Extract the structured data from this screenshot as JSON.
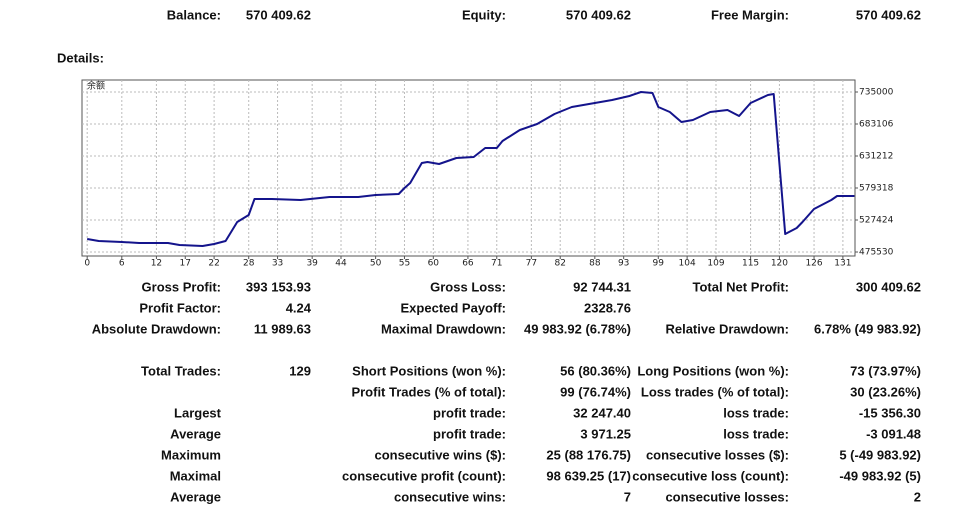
{
  "summary": [
    {
      "label": "Balance:",
      "value": "570 409.62"
    },
    {
      "label": "Equity:",
      "value": "570 409.62"
    },
    {
      "label": "Free Margin:",
      "value": "570 409.62"
    }
  ],
  "details_label": "Details:",
  "chart_data": {
    "type": "line",
    "title": "余额",
    "color": "#14148c",
    "grid": true,
    "x": [
      0,
      1,
      2,
      6,
      9,
      14,
      16,
      20,
      22,
      24,
      26,
      28,
      29,
      32,
      37,
      42,
      47,
      50,
      54,
      55,
      56,
      58,
      59,
      61,
      64,
      67,
      69,
      71,
      72,
      75,
      78,
      81,
      84,
      88,
      91,
      94,
      96,
      98,
      99,
      101,
      103,
      105,
      108,
      111,
      113,
      115,
      118,
      119,
      121,
      123,
      124,
      126,
      129,
      130,
      133
    ],
    "values": [
      496610,
      494990,
      493370,
      491740,
      490120,
      490120,
      486880,
      485260,
      488500,
      493370,
      524180,
      535530,
      561480,
      561480,
      559860,
      564720,
      564720,
      567970,
      569590,
      579320,
      587420,
      619860,
      621480,
      618240,
      627970,
      629590,
      644190,
      644190,
      655540,
      673380,
      683110,
      699320,
      710680,
      717160,
      722030,
      728510,
      735000,
      733380,
      710680,
      702570,
      686350,
      689590,
      702570,
      705810,
      696080,
      717160,
      730140,
      731760,
      504720,
      514450,
      524180,
      545260,
      559860,
      566330,
      566330
    ],
    "xlim": [
      -0.9,
      133.1
    ],
    "ylim": [
      469040,
      754460
    ],
    "xticks": [
      0,
      6,
      12,
      17,
      22,
      28,
      33,
      39,
      44,
      50,
      55,
      60,
      66,
      71,
      77,
      82,
      88,
      93,
      99,
      104,
      109,
      115,
      120,
      126,
      131
    ],
    "yticks": [
      475530,
      527424,
      579318,
      631212,
      683106,
      735000
    ]
  },
  "rows": [
    [
      "Gross Profit:",
      "393 153.93",
      "Gross Loss:",
      "92 744.31",
      "Total Net Profit:",
      "300 409.62"
    ],
    [
      "Profit Factor:",
      "4.24",
      "Expected Payoff:",
      "2328.76",
      null,
      null
    ],
    [
      "Absolute Drawdown:",
      "11 989.63",
      "Maximal Drawdown:",
      "49 983.92 (6.78%)",
      "Relative Drawdown:",
      "6.78% (49 983.92)"
    ],
    [
      "Total Trades:",
      "129",
      "Short Positions (won %):",
      "56 (80.36%)",
      "Long Positions (won %):",
      "73 (73.97%)"
    ],
    [
      null,
      null,
      "Profit Trades (% of total):",
      "99 (76.74%)",
      "Loss trades (% of total):",
      "30 (23.26%)"
    ],
    [
      "Largest",
      null,
      "profit trade:",
      "32 247.40",
      "loss trade:",
      "-15 356.30"
    ],
    [
      "Average",
      null,
      "profit trade:",
      "3 971.25",
      "loss trade:",
      "-3 091.48"
    ],
    [
      "Maximum",
      null,
      "consecutive wins ($):",
      "25 (88 176.75)",
      "consecutive losses ($):",
      "5 (-49 983.92)"
    ],
    [
      "Maximal",
      null,
      "consecutive profit (count):",
      "98 639.25 (17)",
      "consecutive loss (count):",
      "-49 983.92 (5)"
    ],
    [
      "Average",
      null,
      "consecutive wins:",
      "7",
      "consecutive losses:",
      "2"
    ]
  ]
}
